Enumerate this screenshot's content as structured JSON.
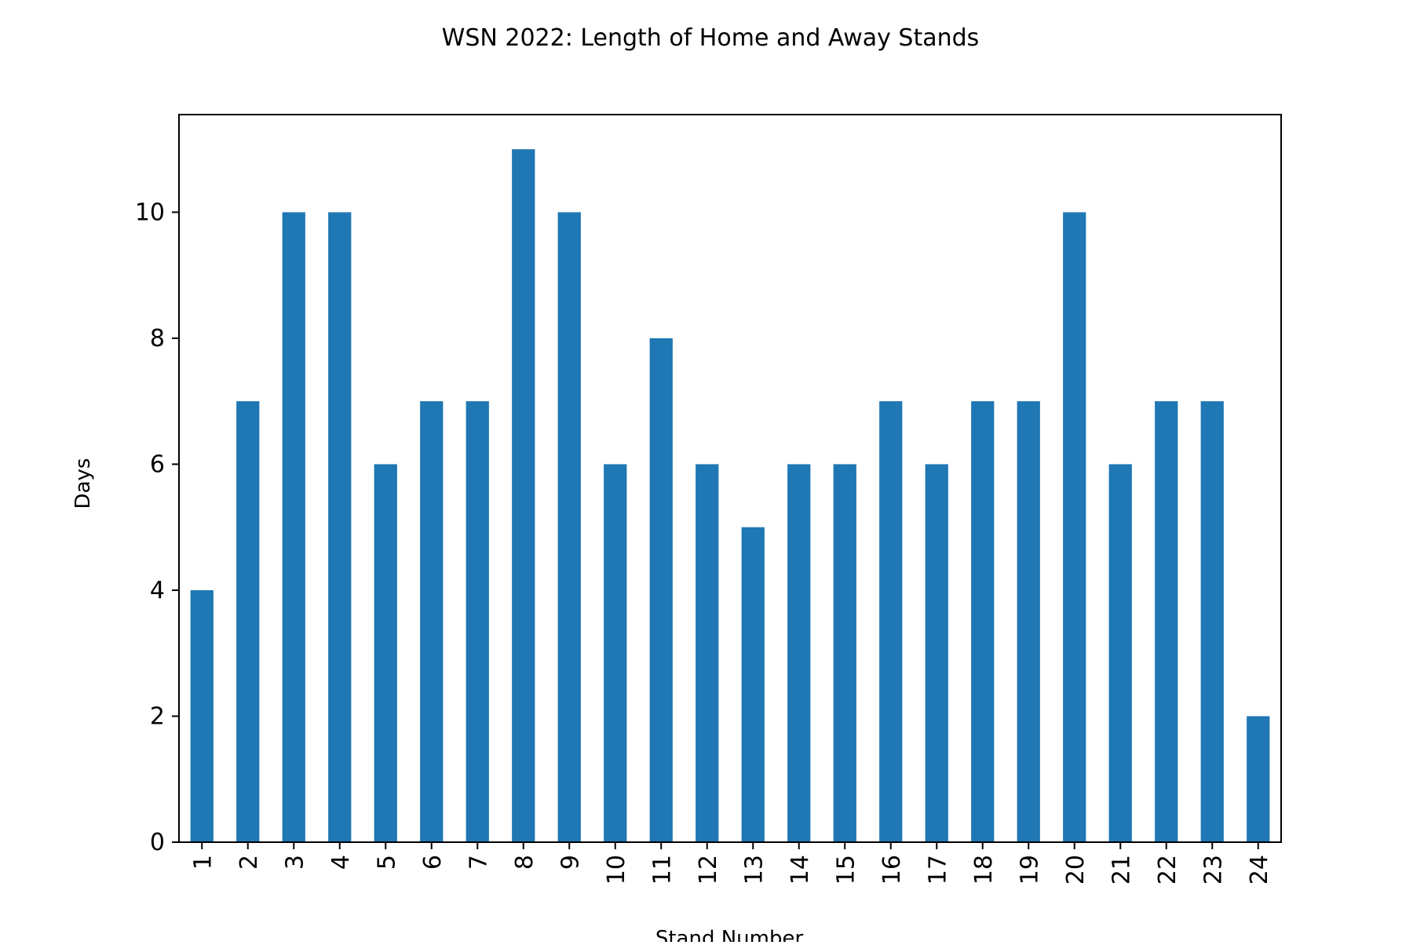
{
  "chart_data": {
    "type": "bar",
    "title": "WSN 2022: Length of Home and Away Stands",
    "xlabel": "Stand Number",
    "ylabel": "Days",
    "categories": [
      "1",
      "2",
      "3",
      "4",
      "5",
      "6",
      "7",
      "8",
      "9",
      "10",
      "11",
      "12",
      "13",
      "14",
      "15",
      "16",
      "17",
      "18",
      "19",
      "20",
      "21",
      "22",
      "23",
      "24"
    ],
    "values": [
      4,
      7,
      10,
      10,
      6,
      7,
      7,
      11,
      10,
      6,
      8,
      6,
      5,
      6,
      6,
      7,
      6,
      7,
      7,
      10,
      6,
      7,
      7,
      2
    ],
    "ylim": [
      0,
      11.55
    ],
    "yticks": [
      0,
      2,
      4,
      6,
      8,
      10
    ],
    "grid": false,
    "legend": "none",
    "bar_color": "#1f77b4",
    "axis_color": "#000000"
  }
}
